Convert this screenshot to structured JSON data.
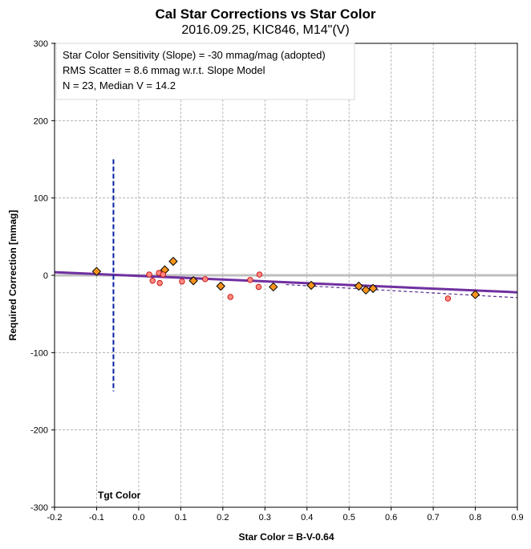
{
  "chart_data": {
    "type": "scatter",
    "title": "Cal Star Corrections vs Star Color",
    "subtitle": "2016.09.25, KIC846, M14\"(V)",
    "xlabel": "Star Color = B-V-0.64",
    "ylabel": "Required Correction [mmag]",
    "xlim": [
      -0.2,
      0.9
    ],
    "ylim": [
      -300,
      300
    ],
    "xticks": [
      -0.2,
      -0.1,
      0,
      0.1,
      0.2,
      0.3,
      0.4,
      0.5,
      0.6,
      0.7,
      0.8,
      0.9
    ],
    "xtick_labels": [
      "-0.2",
      "-0.1",
      "0.0",
      "0.1",
      "0.2",
      "0.3",
      "0.4",
      "0.5",
      "0.6",
      "0.7",
      "0.8",
      "0.9"
    ],
    "yticks": [
      -300,
      -200,
      -100,
      0,
      100,
      200,
      300
    ],
    "ytick_labels": [
      "-300",
      "-200",
      "-100",
      "0",
      "100",
      "200",
      "300"
    ],
    "grid": true,
    "annotation_lines": [
      "Star Color Sensitivity (Slope)  =  -30 mmag/mag (adopted)",
      "RMS Scatter = 8.6 mmag w.r.t. Slope Model",
      "N = 23,  Median V = 14.2"
    ],
    "target_color_label": "Tgt Color",
    "target_color_x": -0.06,
    "target_color_yrange": [
      -150,
      150
    ],
    "series": [
      {
        "marker": "diamond",
        "color": "#f7941d",
        "points": [
          [
            -0.1,
            5
          ],
          [
            0.062,
            7
          ],
          [
            0.082,
            18
          ],
          [
            0.13,
            -7
          ],
          [
            0.195,
            -14
          ],
          [
            0.32,
            -15
          ],
          [
            0.41,
            -13
          ],
          [
            0.523,
            -14
          ],
          [
            0.54,
            -19
          ],
          [
            0.557,
            -17
          ],
          [
            0.8,
            -25
          ]
        ]
      },
      {
        "marker": "circle",
        "color": "#ff8a80",
        "points": [
          [
            0.025,
            1
          ],
          [
            0.033,
            -7
          ],
          [
            0.048,
            3
          ],
          [
            0.05,
            -10
          ],
          [
            0.058,
            1
          ],
          [
            0.103,
            -8
          ],
          [
            0.158,
            -5
          ],
          [
            0.218,
            -28
          ],
          [
            0.265,
            -6
          ],
          [
            0.285,
            -15
          ],
          [
            0.287,
            1
          ],
          [
            0.735,
            -30
          ]
        ]
      }
    ],
    "lines": [
      {
        "style": "solid",
        "color": "#7030a0",
        "x": [
          -0.2,
          0.9
        ],
        "y": [
          4,
          -22
        ]
      },
      {
        "style": "dashed",
        "color": "#5b2d8f",
        "x": [
          0.35,
          0.9
        ],
        "y": [
          -12,
          -29
        ]
      },
      {
        "style": "solid",
        "color": "#bfbfbf",
        "x": [
          -0.2,
          0.9
        ],
        "y": [
          0,
          0
        ]
      }
    ]
  }
}
